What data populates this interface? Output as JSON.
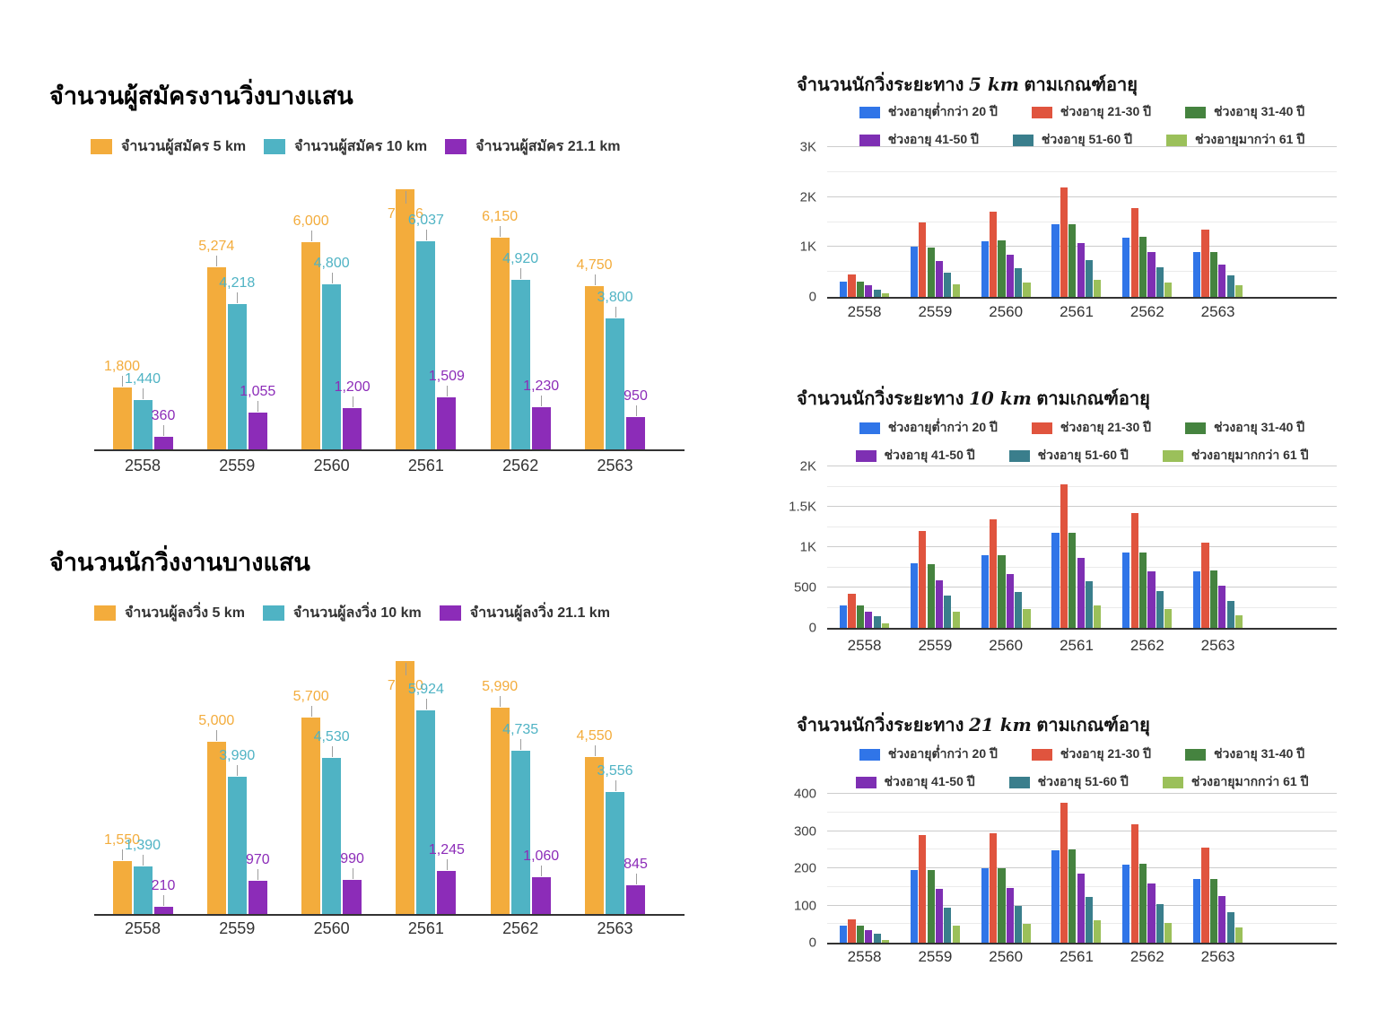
{
  "page": {
    "background": "#ffffff"
  },
  "chart_data": [
    {
      "key": "applicants-by-distance",
      "type": "bar",
      "title": "จำนวนผู้สมัครงานวิ่งบางแสน",
      "categories": [
        "2558",
        "2559",
        "2560",
        "2561",
        "2562",
        "2563"
      ],
      "series": [
        {
          "name": "จำนวนผู้สมัคร 5 km",
          "color": "#F3AC3C",
          "values": [
            1800,
            5274,
            6000,
            7546,
            6150,
            4750
          ]
        },
        {
          "name": "จำนวนผู้สมัคร 10 km",
          "color": "#4FB3C4",
          "values": [
            1440,
            4218,
            4800,
            6037,
            4920,
            3800
          ]
        },
        {
          "name": "จำนวนผู้สมัคร 21.1 km",
          "color": "#8C2CB8",
          "values": [
            360,
            1055,
            1200,
            1509,
            1230,
            950
          ]
        }
      ],
      "ylim": [
        0,
        7600
      ],
      "annotations": true,
      "grid": false,
      "legend_position": "top"
    },
    {
      "key": "runners-by-distance",
      "type": "bar",
      "title": "จำนวนนักวิ่งงานบางแสน",
      "categories": [
        "2558",
        "2559",
        "2560",
        "2561",
        "2562",
        "2563"
      ],
      "series": [
        {
          "name": "จำนวนผู้ลงวิ่ง 5 km",
          "color": "#F3AC3C",
          "values": [
            1550,
            5000,
            5700,
            7340,
            5990,
            4550
          ]
        },
        {
          "name": "จำนวนผู้ลงวิ่ง 10 km",
          "color": "#4FB3C4",
          "values": [
            1390,
            3990,
            4530,
            5924,
            4735,
            3556
          ]
        },
        {
          "name": "จำนวนผู้ลงวิ่ง 21.1 km",
          "color": "#8C2CB8",
          "values": [
            210,
            970,
            990,
            1245,
            1060,
            845
          ]
        }
      ],
      "ylim": [
        0,
        7400
      ],
      "annotations": true,
      "grid": false,
      "legend_position": "top"
    },
    {
      "key": "runners-5km-by-age",
      "type": "bar",
      "title": "จำนวนนักวิ่งระยะทาง 5 km ตามเกณฑ์อายุ",
      "title_prefix": "จำนวนนักวิ่งระยะทาง",
      "title_distance": "5 km",
      "title_suffix": "ตามเกณฑ์อายุ",
      "categories": [
        "2558",
        "2559",
        "2560",
        "2561",
        "2562",
        "2563"
      ],
      "series": [
        {
          "name": "ช่วงอายุต่ำกว่า 20 ปี",
          "color": "#3075E8",
          "values": [
            300,
            1000,
            1120,
            1450,
            1190,
            900
          ]
        },
        {
          "name": "ช่วงอายุ 21-30 ปี",
          "color": "#E0543E",
          "values": [
            450,
            1500,
            1700,
            2200,
            1780,
            1350
          ]
        },
        {
          "name": "ช่วงอายุ 31-40 ปี",
          "color": "#45833F",
          "values": [
            300,
            990,
            1130,
            1460,
            1200,
            905
          ]
        },
        {
          "name": "ช่วงอายุ 41-50 ปี",
          "color": "#7E2FB3",
          "values": [
            230,
            720,
            850,
            1080,
            900,
            650
          ]
        },
        {
          "name": "ช่วงอายุ 51-60 ปี",
          "color": "#3A7E8C",
          "values": [
            150,
            480,
            580,
            740,
            590,
            440
          ]
        },
        {
          "name": "ช่วงอายุมากว่า 61 ปี",
          "color": "#9BC05A",
          "values": [
            75,
            250,
            280,
            350,
            290,
            230
          ]
        }
      ],
      "ylim": [
        0,
        3000
      ],
      "tick_step": 1000,
      "minor_step": 500,
      "yticks": [
        "0",
        "1K",
        "2K",
        "3K"
      ],
      "annotations": false,
      "grid": true,
      "legend_position": "top"
    },
    {
      "key": "runners-10km-by-age",
      "type": "bar",
      "title": "จำนวนนักวิ่งระยะทาง 10 km ตามเกณฑ์อายุ",
      "title_prefix": "จำนวนนักวิ่งระยะทาง",
      "title_distance": "10 km",
      "title_suffix": "ตามเกณฑ์อายุ",
      "categories": [
        "2558",
        "2559",
        "2560",
        "2561",
        "2562",
        "2563"
      ],
      "series": [
        {
          "name": "ช่วงอายุต่ำกว่า 20 ปี",
          "color": "#3075E8",
          "values": [
            280,
            800,
            900,
            1180,
            930,
            700
          ]
        },
        {
          "name": "ช่วงอายุ 21-30 ปี",
          "color": "#E0543E",
          "values": [
            420,
            1200,
            1350,
            1780,
            1420,
            1060
          ]
        },
        {
          "name": "ช่วงอายุ 31-40 ปี",
          "color": "#45833F",
          "values": [
            280,
            790,
            900,
            1180,
            930,
            710
          ]
        },
        {
          "name": "ช่วงอายุ 41-50 ปี",
          "color": "#7E2FB3",
          "values": [
            195,
            590,
            670,
            870,
            700,
            520
          ]
        },
        {
          "name": "ช่วงอายุ 51-60 ปี",
          "color": "#3A7E8C",
          "values": [
            140,
            400,
            440,
            580,
            460,
            330
          ]
        },
        {
          "name": "ช่วงอายุมากกว่า 61 ปี",
          "color": "#9BC05A",
          "values": [
            60,
            200,
            230,
            280,
            230,
            160
          ]
        }
      ],
      "ylim": [
        0,
        2000
      ],
      "tick_step": 500,
      "minor_step": 250,
      "yticks": [
        "0",
        "500",
        "1K",
        "1.5K",
        "2K"
      ],
      "annotations": false,
      "grid": true,
      "legend_position": "top"
    },
    {
      "key": "runners-21km-by-age",
      "type": "bar",
      "title": "จำนวนนักวิ่งระยะทาง 21 km ตามเกณฑ์อายุ",
      "title_prefix": "จำนวนนักวิ่งระยะทาง",
      "title_distance": "21 km",
      "title_suffix": "ตามเกณฑ์อายุ",
      "categories": [
        "2558",
        "2559",
        "2560",
        "2561",
        "2562",
        "2563"
      ],
      "series": [
        {
          "name": "ช่วงอายุต่ำกว่า 20 ปี",
          "color": "#3075E8",
          "values": [
            45,
            195,
            200,
            248,
            210,
            170
          ]
        },
        {
          "name": "ช่วงอายุ 21-30 ปี",
          "color": "#E0543E",
          "values": [
            62,
            290,
            295,
            375,
            318,
            255
          ]
        },
        {
          "name": "ช่วงอายุ 31-40 ปี",
          "color": "#45833F",
          "values": [
            45,
            195,
            200,
            250,
            212,
            171
          ]
        },
        {
          "name": "ช่วงอายุ 41-50 ปี",
          "color": "#7E2FB3",
          "values": [
            33,
            145,
            148,
            185,
            158,
            125
          ]
        },
        {
          "name": "ช่วงอายุ 51-60 ปี",
          "color": "#3A7E8C",
          "values": [
            25,
            95,
            100,
            122,
            104,
            82
          ]
        },
        {
          "name": "ช่วงอายุมากกว่า 61 ปี",
          "color": "#9BC05A",
          "values": [
            8,
            45,
            50,
            60,
            52,
            42
          ]
        }
      ],
      "ylim": [
        0,
        400
      ],
      "tick_step": 100,
      "minor_step": 50,
      "yticks": [
        "0",
        "100",
        "200",
        "300",
        "400"
      ],
      "annotations": false,
      "grid": true,
      "legend_position": "top"
    }
  ]
}
